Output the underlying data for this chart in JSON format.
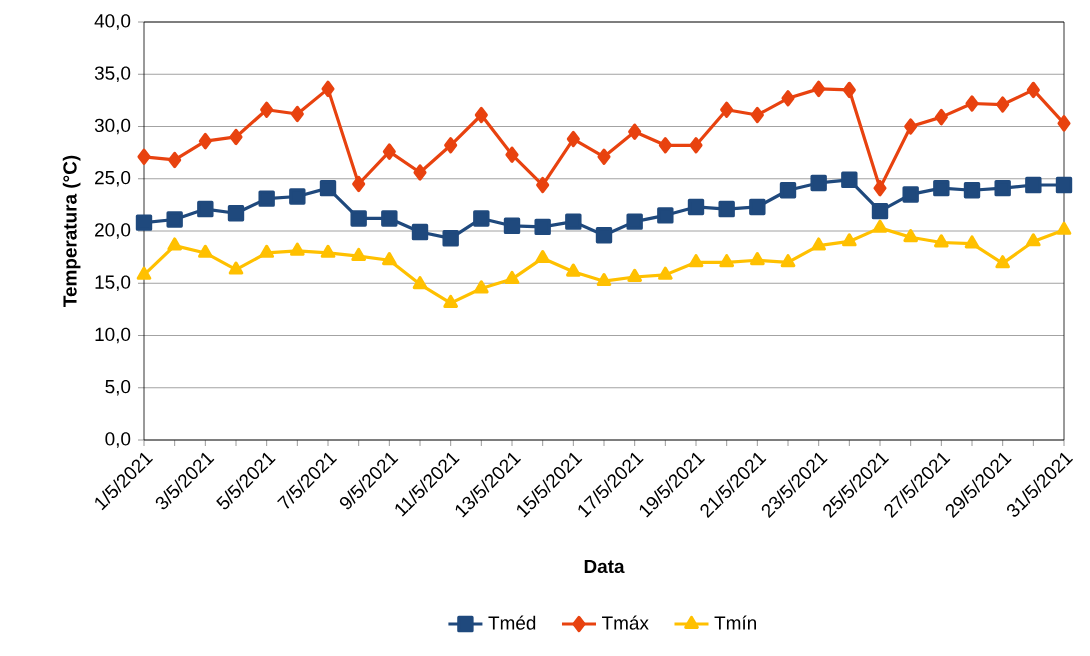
{
  "chart_data": {
    "type": "line",
    "xlabel": "Data",
    "ylabel": "Temperatura (°C)",
    "categories": [
      "1/5/2021",
      null,
      "3/5/2021",
      null,
      "5/5/2021",
      null,
      "7/5/2021",
      null,
      "9/5/2021",
      null,
      "11/5/2021",
      null,
      "13/5/2021",
      null,
      "15/5/2021",
      null,
      "17/5/2021",
      null,
      "19/5/2021",
      null,
      "21/5/2021",
      null,
      "23/5/2021",
      null,
      "25/5/2021",
      null,
      "27/5/2021",
      null,
      "29/5/2021",
      null,
      "31/5/2021"
    ],
    "series": [
      {
        "name": "Tméd",
        "color": "#1f497d",
        "marker": "square",
        "values": [
          20.8,
          21.1,
          22.1,
          21.7,
          23.1,
          23.3,
          24.1,
          21.2,
          21.2,
          19.9,
          19.3,
          21.2,
          20.5,
          20.4,
          20.9,
          19.6,
          20.9,
          21.5,
          22.3,
          22.1,
          22.3,
          23.9,
          24.6,
          24.9,
          21.9,
          23.5,
          24.1,
          23.9,
          24.1,
          24.4,
          24.4
        ]
      },
      {
        "name": "Tmáx",
        "color": "#e8420f",
        "marker": "diamond",
        "values": [
          27.1,
          26.8,
          28.6,
          29.0,
          31.6,
          31.2,
          33.6,
          24.5,
          27.6,
          25.6,
          28.2,
          31.1,
          27.3,
          24.4,
          28.8,
          27.1,
          29.5,
          28.2,
          28.2,
          31.6,
          31.1,
          32.7,
          33.6,
          33.5,
          24.1,
          30.0,
          30.9,
          32.2,
          32.1,
          33.5,
          30.3
        ]
      },
      {
        "name": "Tmín",
        "color": "#ffc000",
        "marker": "triangle",
        "values": [
          15.8,
          18.6,
          17.9,
          16.3,
          17.9,
          18.1,
          17.9,
          17.6,
          17.2,
          14.9,
          13.1,
          14.5,
          15.4,
          17.4,
          16.1,
          15.2,
          15.6,
          15.8,
          17.0,
          17.0,
          17.2,
          17.0,
          18.6,
          19.0,
          20.3,
          19.4,
          18.9,
          18.8,
          16.9,
          19.0,
          20.1
        ]
      }
    ],
    "ylim": [
      0,
      40
    ],
    "yticks": [
      {
        "value": 0,
        "label": "0,0"
      },
      {
        "value": 5,
        "label": "5,0"
      },
      {
        "value": 10,
        "label": "10,0"
      },
      {
        "value": 15,
        "label": "15,0"
      },
      {
        "value": 20,
        "label": "20,0"
      },
      {
        "value": 25,
        "label": "25,0"
      },
      {
        "value": 30,
        "label": "30,0"
      },
      {
        "value": 35,
        "label": "35,0"
      },
      {
        "value": 40,
        "label": "40,0"
      }
    ],
    "grid": "y",
    "legend": "bottom",
    "line_style": "solid"
  }
}
